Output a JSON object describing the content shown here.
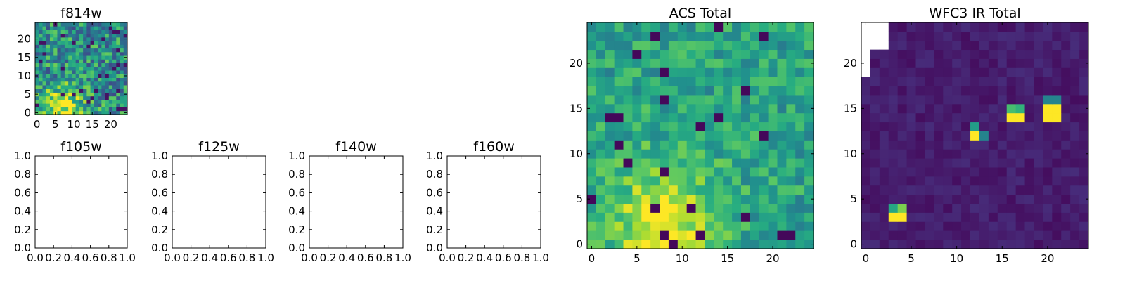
{
  "chart_data": [
    {
      "type": "heatmap",
      "title": "f814w",
      "xlim": [
        -0.5,
        24.5
      ],
      "ylim": [
        -0.5,
        24.5
      ],
      "xticks": [
        0,
        5,
        10,
        15,
        20
      ],
      "yticks": [
        0,
        5,
        10,
        15,
        20
      ],
      "grid_size": 25,
      "colormap": "viridis",
      "pattern": "brighter toward bottom-left (x 3-12, y 0-6)"
    },
    {
      "type": "empty",
      "title": "f105w",
      "xlim": [
        0,
        1
      ],
      "ylim": [
        0,
        1
      ],
      "xticks": [
        "0.0",
        "0.2",
        "0.4",
        "0.6",
        "0.8",
        "1.0"
      ],
      "yticks": [
        "0.0",
        "0.2",
        "0.4",
        "0.6",
        "0.8",
        "1.0"
      ]
    },
    {
      "type": "empty",
      "title": "f125w",
      "xlim": [
        0,
        1
      ],
      "ylim": [
        0,
        1
      ],
      "xticks": [
        "0.0",
        "0.2",
        "0.4",
        "0.6",
        "0.8",
        "1.0"
      ],
      "yticks": [
        "0.0",
        "0.2",
        "0.4",
        "0.6",
        "0.8",
        "1.0"
      ]
    },
    {
      "type": "empty",
      "title": "f140w",
      "xlim": [
        0,
        1
      ],
      "ylim": [
        0,
        1
      ],
      "xticks": [
        "0.0",
        "0.2",
        "0.4",
        "0.6",
        "0.8",
        "1.0"
      ],
      "yticks": [
        "0.0",
        "0.2",
        "0.4",
        "0.6",
        "0.8",
        "1.0"
      ]
    },
    {
      "type": "empty",
      "title": "f160w",
      "xlim": [
        0,
        1
      ],
      "ylim": [
        0,
        1
      ],
      "xticks": [
        "0.0",
        "0.2",
        "0.4",
        "0.6",
        "0.8",
        "1.0"
      ],
      "yticks": [
        "0.0",
        "0.2",
        "0.4",
        "0.6",
        "0.8",
        "1.0"
      ]
    },
    {
      "type": "heatmap",
      "title": "ACS Total",
      "xlim": [
        -0.5,
        24.5
      ],
      "ylim": [
        -0.5,
        24.5
      ],
      "xticks": [
        0,
        5,
        10,
        15,
        20
      ],
      "yticks": [
        0,
        5,
        10,
        15,
        20
      ],
      "grid_size": 25,
      "colormap": "viridis",
      "pattern": "green-teal field, brighter toward bottom-left (x 4-12, y 0-6)"
    },
    {
      "type": "heatmap",
      "title": "WFC3 IR Total",
      "xlim": [
        -0.5,
        24.5
      ],
      "ylim": [
        -0.5,
        24.5
      ],
      "xticks": [
        0,
        5,
        10,
        15,
        20
      ],
      "yticks": [
        0,
        5,
        10,
        15,
        20
      ],
      "grid_size": 25,
      "colormap": "viridis",
      "background_level": 0.08,
      "hotspots": [
        {
          "x": 3,
          "y": 3,
          "value": 1.0
        },
        {
          "x": 4,
          "y": 3,
          "value": 1.0
        },
        {
          "x": 3,
          "y": 4,
          "value": 0.6
        },
        {
          "x": 4,
          "y": 4,
          "value": 0.8
        },
        {
          "x": 12,
          "y": 12,
          "value": 1.0
        },
        {
          "x": 12,
          "y": 13,
          "value": 0.55
        },
        {
          "x": 13,
          "y": 12,
          "value": 0.45
        },
        {
          "x": 16,
          "y": 14,
          "value": 1.0
        },
        {
          "x": 17,
          "y": 14,
          "value": 1.0
        },
        {
          "x": 16,
          "y": 15,
          "value": 0.7
        },
        {
          "x": 17,
          "y": 15,
          "value": 0.65
        },
        {
          "x": 20,
          "y": 14,
          "value": 1.0
        },
        {
          "x": 21,
          "y": 14,
          "value": 1.0
        },
        {
          "x": 20,
          "y": 15,
          "value": 1.0
        },
        {
          "x": 21,
          "y": 15,
          "value": 1.0
        },
        {
          "x": 20,
          "y": 16,
          "value": 0.45
        },
        {
          "x": 21,
          "y": 16,
          "value": 0.45
        }
      ],
      "masked_region": "top-left corner blank"
    }
  ]
}
